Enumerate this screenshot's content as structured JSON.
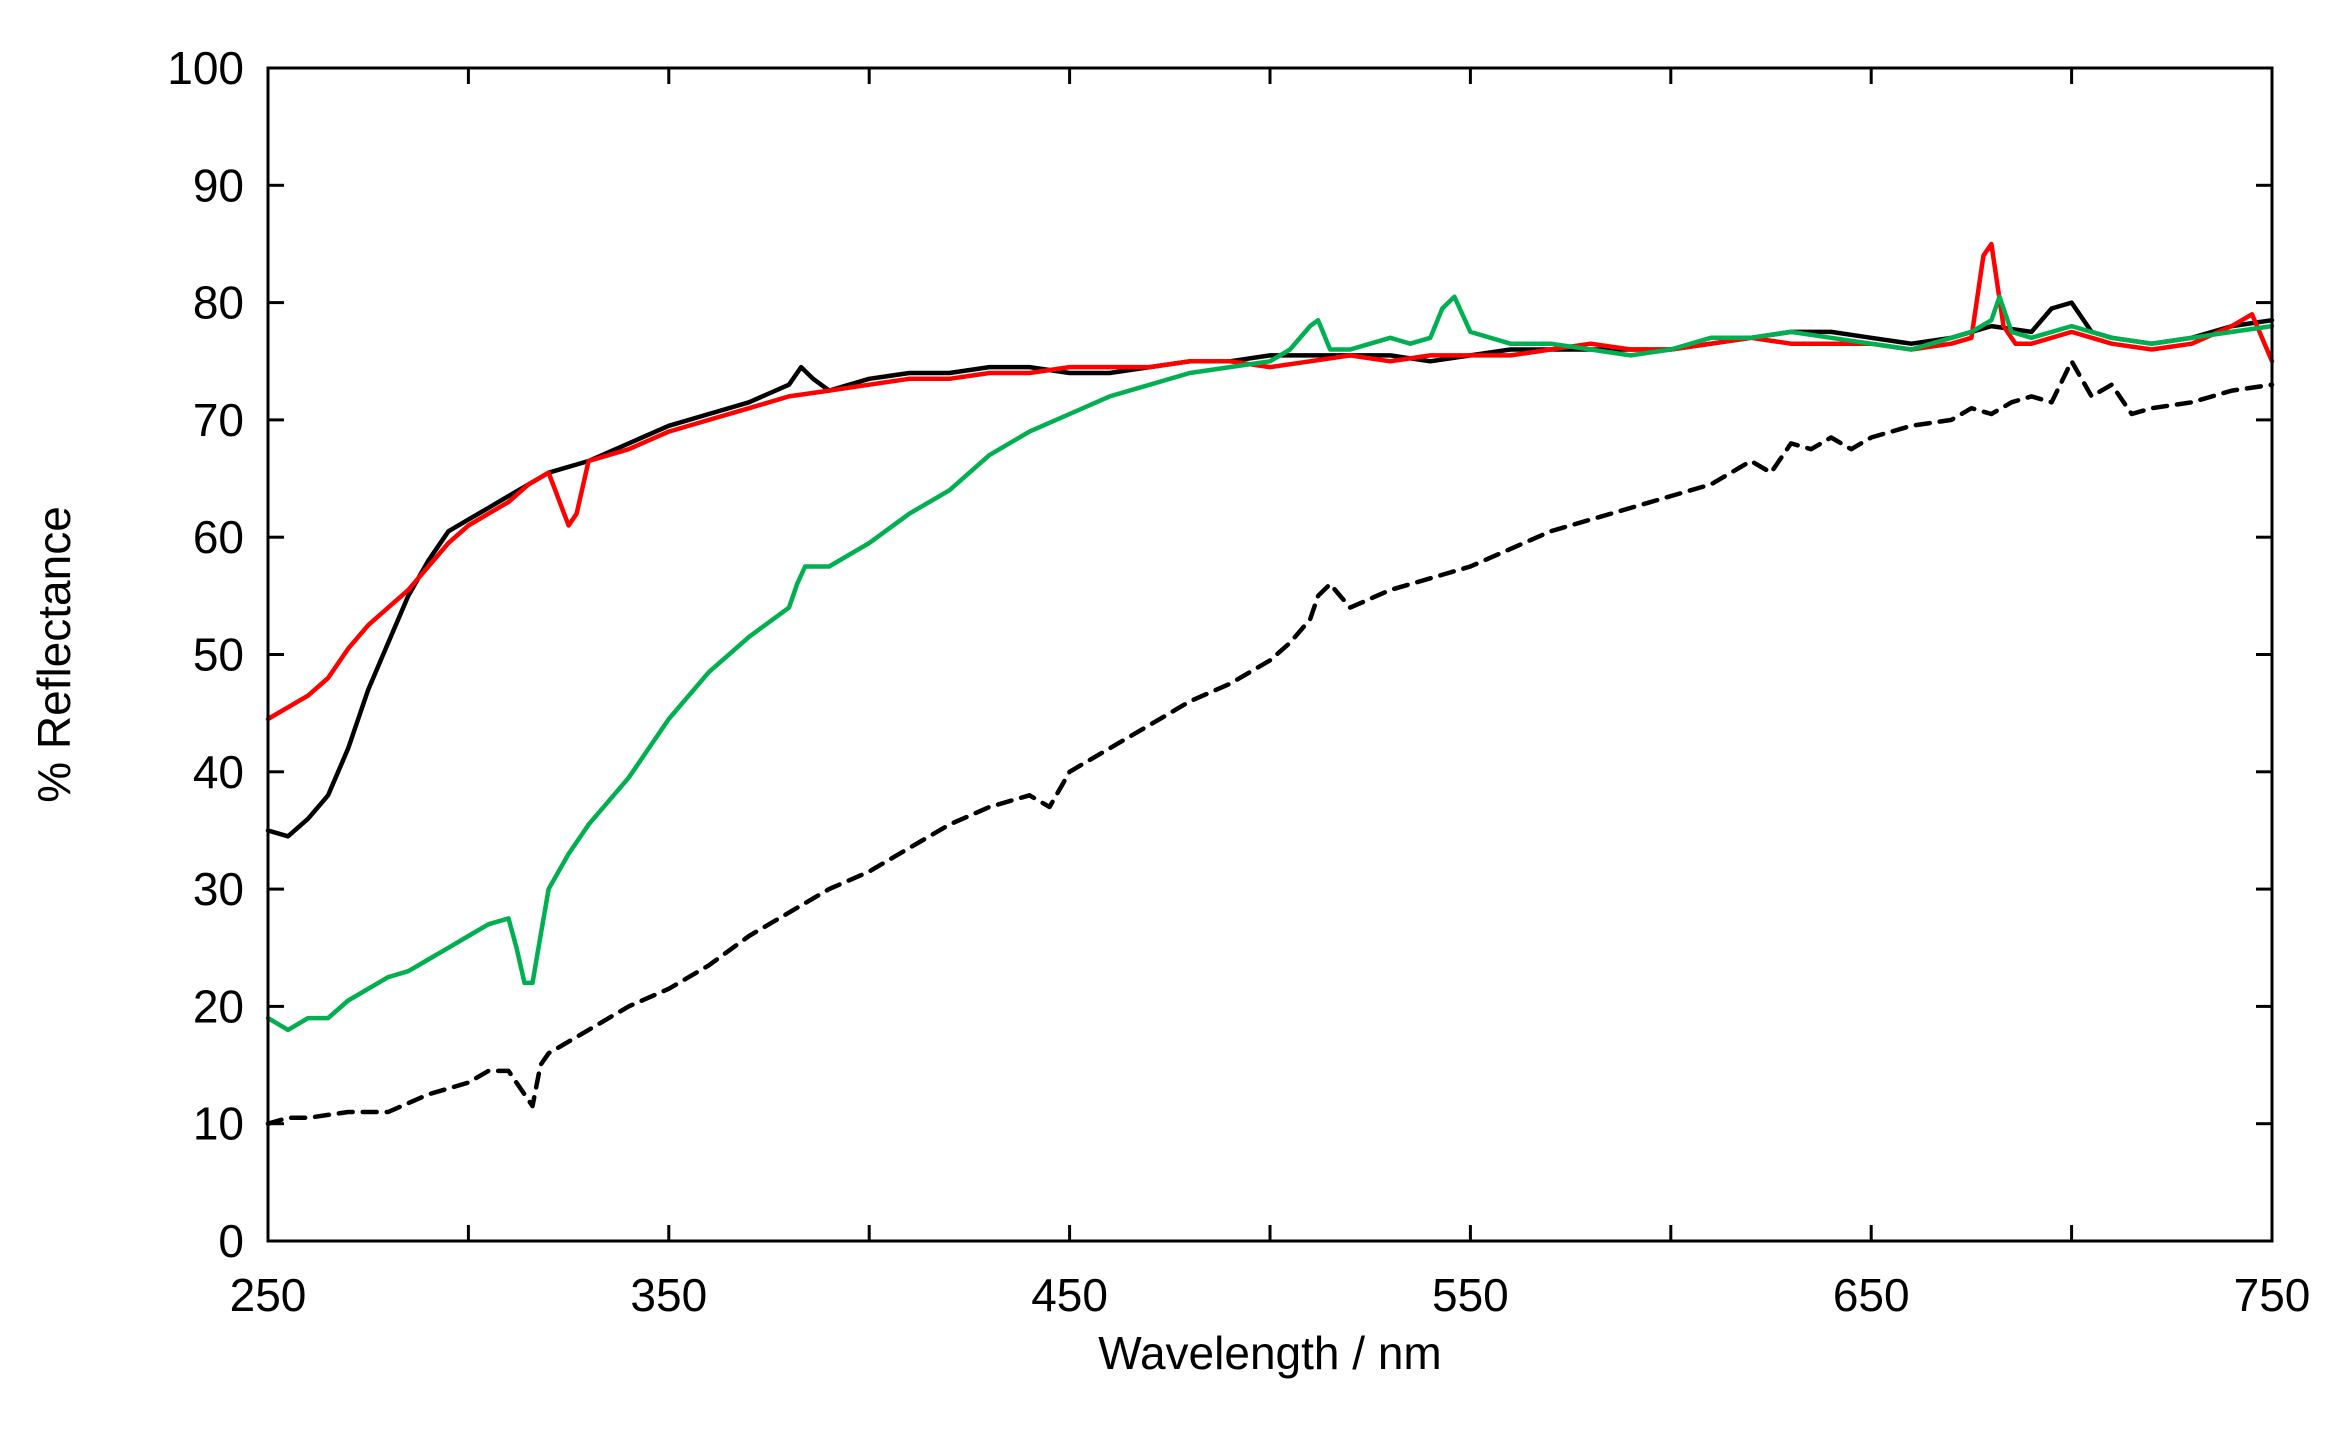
{
  "chart_data": {
    "type": "line",
    "title": "",
    "xlabel": "Wavelength / nm",
    "ylabel": "% Reflectance",
    "xlim": [
      250,
      750
    ],
    "ylim": [
      0,
      100
    ],
    "x_ticks": [
      250,
      350,
      450,
      550,
      650,
      750
    ],
    "y_ticks": [
      0,
      10,
      20,
      30,
      40,
      50,
      60,
      70,
      80,
      90,
      100
    ],
    "grid": false,
    "legend": "none",
    "series": [
      {
        "color": "#000000",
        "dash": "dashed",
        "x": [
          250,
          255,
          260,
          270,
          280,
          290,
          300,
          305,
          310,
          313,
          316,
          318,
          320,
          330,
          340,
          350,
          360,
          370,
          380,
          390,
          400,
          410,
          420,
          430,
          440,
          445,
          450,
          460,
          470,
          480,
          490,
          500,
          505,
          510,
          512,
          515,
          520,
          530,
          540,
          545,
          550,
          560,
          570,
          580,
          590,
          600,
          610,
          620,
          625,
          630,
          635,
          640,
          645,
          650,
          660,
          670,
          675,
          680,
          685,
          690,
          695,
          700,
          705,
          710,
          715,
          720,
          730,
          740,
          750
        ],
        "y": [
          10,
          10.5,
          10.5,
          11,
          11,
          12.5,
          13.5,
          14.5,
          14.5,
          13,
          11.5,
          15,
          16,
          18,
          20,
          21.5,
          23.5,
          26,
          28,
          30,
          31.5,
          33.5,
          35.5,
          37,
          38,
          37,
          40,
          42,
          44,
          46,
          47.5,
          49.5,
          51,
          53,
          55,
          56,
          54,
          55.5,
          56.5,
          57,
          57.5,
          59,
          60.5,
          61.5,
          62.5,
          63.5,
          64.5,
          66.5,
          65.5,
          68,
          67.5,
          68.5,
          67.5,
          68.5,
          69.5,
          70,
          71,
          70.5,
          71.5,
          72,
          71.5,
          75,
          72,
          73,
          70.5,
          71,
          71.5,
          72.5,
          73
        ]
      },
      {
        "color": "#000000",
        "dash": "solid",
        "x": [
          250,
          255,
          260,
          265,
          270,
          275,
          280,
          285,
          290,
          295,
          300,
          305,
          310,
          315,
          320,
          330,
          340,
          350,
          360,
          370,
          380,
          383,
          386,
          390,
          395,
          400,
          410,
          420,
          430,
          440,
          450,
          460,
          470,
          480,
          490,
          500,
          510,
          520,
          530,
          540,
          550,
          560,
          570,
          580,
          590,
          600,
          610,
          620,
          630,
          640,
          650,
          660,
          670,
          680,
          690,
          695,
          700,
          705,
          710,
          720,
          730,
          740,
          750
        ],
        "y": [
          35,
          34.5,
          36,
          38,
          42,
          47,
          51,
          55,
          58,
          60.5,
          61.5,
          62.5,
          63.5,
          64.5,
          65.5,
          66.5,
          68,
          69.5,
          70.5,
          71.5,
          73,
          74.5,
          73.5,
          72.5,
          73,
          73.5,
          74,
          74,
          74.5,
          74.5,
          74,
          74,
          74.5,
          75,
          75,
          75.5,
          75.5,
          75.5,
          75.5,
          75,
          75.5,
          76,
          76,
          76,
          76,
          76,
          76.5,
          77,
          77.5,
          77.5,
          77,
          76.5,
          77,
          78,
          77.5,
          79.5,
          80,
          77.5,
          77,
          76.5,
          77,
          78,
          78.5
        ]
      },
      {
        "color": "#ff0000",
        "dash": "solid",
        "x": [
          250,
          255,
          260,
          265,
          270,
          275,
          280,
          285,
          290,
          295,
          300,
          305,
          310,
          315,
          320,
          325,
          327,
          330,
          335,
          340,
          350,
          360,
          370,
          380,
          390,
          400,
          410,
          420,
          430,
          440,
          450,
          460,
          470,
          480,
          490,
          500,
          510,
          520,
          530,
          540,
          550,
          560,
          570,
          580,
          590,
          600,
          610,
          620,
          630,
          640,
          650,
          660,
          670,
          675,
          678,
          680,
          683,
          686,
          690,
          700,
          710,
          720,
          730,
          740,
          745,
          750
        ],
        "y": [
          44.5,
          45.5,
          46.5,
          48,
          50.5,
          52.5,
          54,
          55.5,
          57.5,
          59.5,
          61,
          62,
          63,
          64.5,
          65.5,
          61,
          62,
          66.5,
          67,
          67.5,
          69,
          70,
          71,
          72,
          72.5,
          73,
          73.5,
          73.5,
          74,
          74,
          74.5,
          74.5,
          74.5,
          75,
          75,
          74.5,
          75,
          75.5,
          75,
          75.5,
          75.5,
          75.5,
          76,
          76.5,
          76,
          76,
          76.5,
          77,
          76.5,
          76.5,
          76.5,
          76,
          76.5,
          77,
          84,
          85,
          78,
          76.5,
          76.5,
          77.5,
          76.5,
          76,
          76.5,
          78,
          79,
          75
        ]
      },
      {
        "color": "#00b050",
        "dash": "solid",
        "x": [
          250,
          255,
          260,
          265,
          270,
          275,
          280,
          285,
          290,
          295,
          300,
          305,
          310,
          312,
          314,
          316,
          318,
          320,
          325,
          330,
          340,
          350,
          360,
          370,
          380,
          382,
          384,
          390,
          400,
          410,
          420,
          430,
          440,
          450,
          460,
          470,
          480,
          490,
          500,
          505,
          510,
          512,
          515,
          520,
          525,
          530,
          535,
          540,
          543,
          546,
          550,
          560,
          570,
          580,
          590,
          600,
          610,
          620,
          630,
          640,
          650,
          660,
          670,
          675,
          680,
          682,
          685,
          690,
          700,
          710,
          720,
          730,
          740,
          750
        ],
        "y": [
          19,
          18,
          19,
          19,
          20.5,
          21.5,
          22.5,
          23,
          24,
          25,
          26,
          27,
          27.5,
          25,
          22,
          22,
          26,
          30,
          33,
          35.5,
          39.5,
          44.5,
          48.5,
          51.5,
          54,
          56,
          57.5,
          57.5,
          59.5,
          62,
          64,
          67,
          69,
          70.5,
          72,
          73,
          74,
          74.5,
          75,
          76,
          78,
          78.5,
          76,
          76,
          76.5,
          77,
          76.5,
          77,
          79.5,
          80.5,
          77.5,
          76.5,
          76.5,
          76,
          75.5,
          76,
          77,
          77,
          77.5,
          77,
          76.5,
          76,
          77,
          77.5,
          78.5,
          80.5,
          77.5,
          77,
          78,
          77,
          76.5,
          77,
          77.5,
          78
        ]
      }
    ]
  }
}
